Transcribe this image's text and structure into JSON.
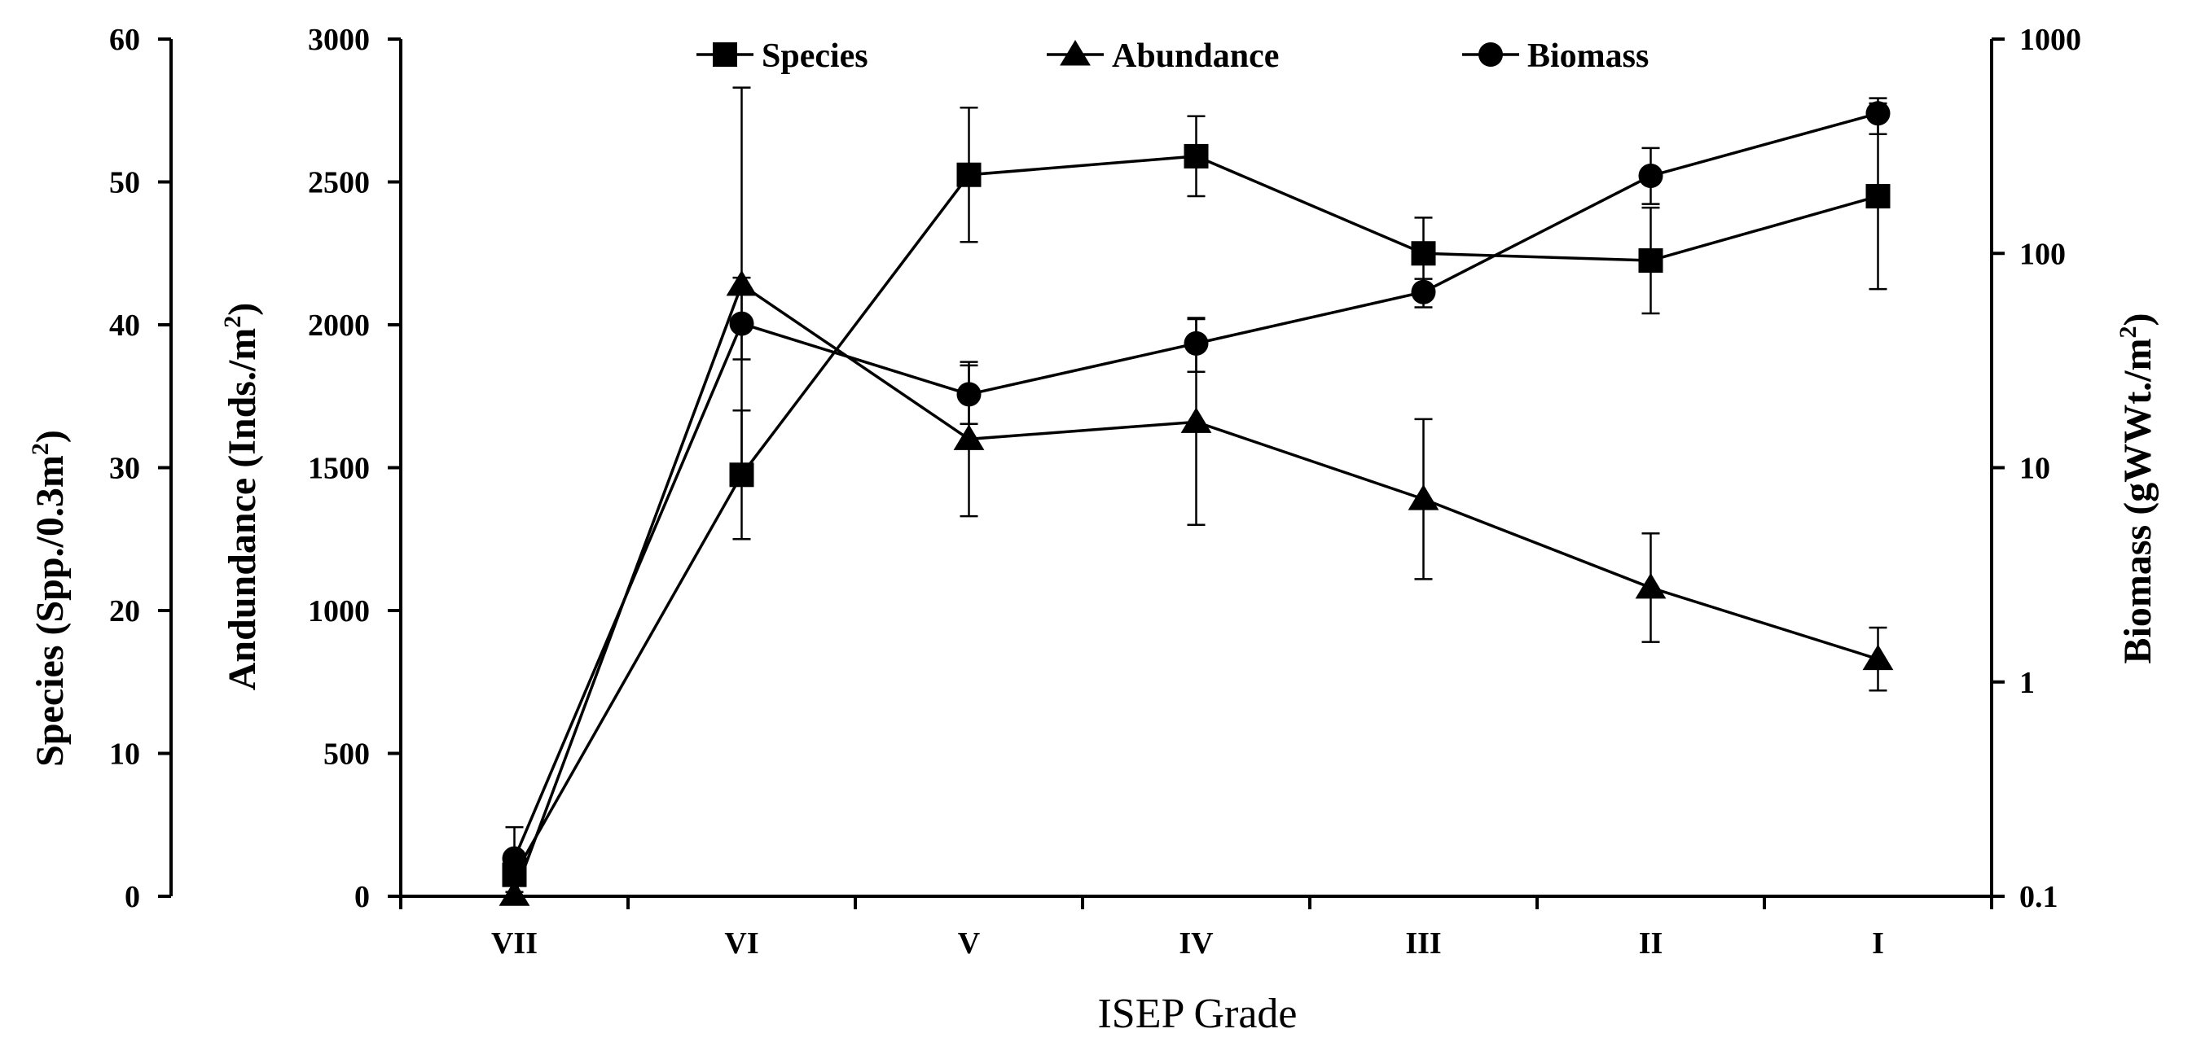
{
  "chart_data": {
    "type": "line",
    "categories": [
      "VII",
      "VI",
      "V",
      "IV",
      "III",
      "II",
      "I"
    ],
    "xlabel": "ISEP Grade",
    "axes": {
      "species": {
        "label_main": "Species (Spp./0.3m",
        "label_sup": "2",
        "label_end": ")",
        "range": [
          0,
          60
        ],
        "ticks": [
          0,
          10,
          20,
          30,
          40,
          50,
          60
        ],
        "scale": "linear"
      },
      "abundance": {
        "label_main": "Andundance (Inds./m",
        "label_sup": "2",
        "label_end": ")",
        "range": [
          0,
          3000
        ],
        "ticks": [
          0,
          500,
          1000,
          1500,
          2000,
          2500,
          3000
        ],
        "scale": "linear"
      },
      "biomass": {
        "label_main": "Biomass (gWWt./m",
        "label_sup": "2",
        "label_end": ")",
        "range": [
          0.1,
          1000
        ],
        "ticks": [
          "0.1",
          "1",
          "10",
          "100",
          "1000"
        ],
        "scale": "log"
      }
    },
    "legend_position": "top",
    "series": [
      {
        "name": "Species",
        "marker": "square",
        "axis": "species",
        "values": [
          1.5,
          29.5,
          50.5,
          51.8,
          45,
          44.5,
          49
        ],
        "errors": [
          1.5,
          4.5,
          4.7,
          2.8,
          2.5,
          3.7,
          6.5
        ]
      },
      {
        "name": "Abundance",
        "marker": "triangle",
        "axis": "abundance",
        "values": [
          5,
          2140,
          1600,
          1660,
          1390,
          1080,
          830
        ],
        "errors": [
          10,
          690,
          270,
          360,
          280,
          190,
          110
        ]
      },
      {
        "name": "Biomass",
        "marker": "circle",
        "axis": "biomass",
        "values": [
          0.15,
          47,
          22,
          38,
          66,
          230,
          450
        ],
        "errors_low": [
          0.02,
          15,
          6,
          10,
          10,
          60,
          90
        ],
        "errors_high": [
          0.06,
          30,
          8,
          12,
          10,
          80,
          80
        ]
      }
    ]
  }
}
